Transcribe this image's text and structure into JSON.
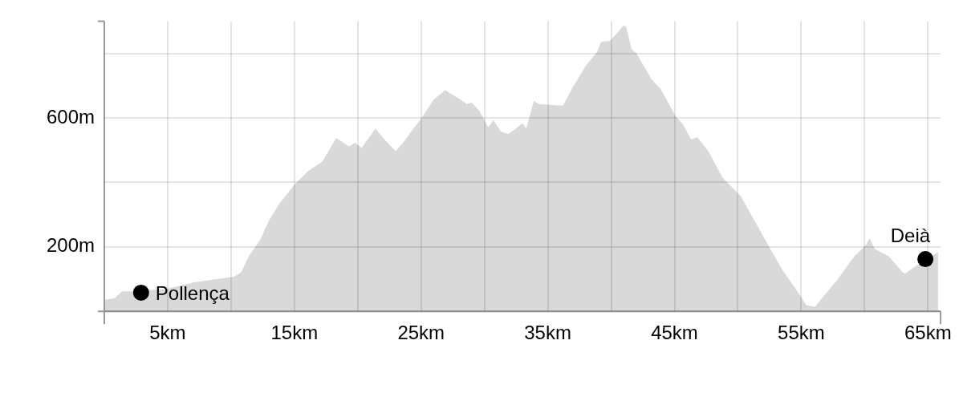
{
  "chart_data": {
    "type": "area",
    "color": "#d9d9d9",
    "x": [
      0,
      0.8,
      1.4,
      2.2,
      4.8,
      7.1,
      8.9,
      10.2,
      10.8,
      11.4,
      12.3,
      13.0,
      13.8,
      15.0,
      16.1,
      17.2,
      18.3,
      19.3,
      19.8,
      20.3,
      21.4,
      22.2,
      23.0,
      23.7,
      24.3,
      25.0,
      26.0,
      26.9,
      28.0,
      28.6,
      29.0,
      29.6,
      30.3,
      30.7,
      31.3,
      31.9,
      32.6,
      33.0,
      33.3,
      33.9,
      34.3,
      36.2,
      36.9,
      38.0,
      38.9,
      39.2,
      39.9,
      40.5,
      41.0,
      41.2,
      41.6,
      42.0,
      43.2,
      43.9,
      45.1,
      45.7,
      46.3,
      46.8,
      47.7,
      48.8,
      50.2,
      51.3,
      52.4,
      53.5,
      54.7,
      55.4,
      56.1,
      56.7,
      57.8,
      59.2,
      60.1,
      60.4,
      60.8,
      61.9,
      63.0,
      63.2,
      64.1,
      65.8
    ],
    "values": [
      36,
      40,
      62,
      62,
      69,
      90,
      100,
      107,
      121,
      171,
      222,
      282,
      333,
      393,
      436,
      464,
      538,
      512,
      523,
      507,
      567,
      529,
      497,
      529,
      562,
      597,
      657,
      686,
      660,
      643,
      648,
      622,
      571,
      593,
      558,
      550,
      571,
      583,
      567,
      652,
      643,
      638,
      690,
      762,
      805,
      836,
      839,
      864,
      888,
      881,
      814,
      800,
      719,
      690,
      605,
      579,
      533,
      540,
      495,
      414,
      359,
      282,
      205,
      129,
      62,
      19,
      14,
      44,
      95,
      171,
      205,
      226,
      193,
      171,
      121,
      117,
      142,
      184
    ],
    "xlim": [
      0,
      66
    ],
    "ylim": [
      0,
      900
    ],
    "xticks": [
      {
        "value": 5,
        "label": "5km"
      },
      {
        "value": 10,
        "label": null
      },
      {
        "value": 15,
        "label": "15km"
      },
      {
        "value": 20,
        "label": null
      },
      {
        "value": 25,
        "label": "25km"
      },
      {
        "value": 30,
        "label": null
      },
      {
        "value": 35,
        "label": "35km"
      },
      {
        "value": 40,
        "label": null
      },
      {
        "value": 45,
        "label": "45km"
      },
      {
        "value": 50,
        "label": null
      },
      {
        "value": 55,
        "label": "55km"
      },
      {
        "value": 60,
        "label": null
      },
      {
        "value": 65,
        "label": "65km"
      }
    ],
    "yticks": [
      {
        "value": 0,
        "label": null
      },
      {
        "value": 200,
        "label": "200m"
      },
      {
        "value": 400,
        "label": null
      },
      {
        "value": 600,
        "label": "600m"
      },
      {
        "value": 800,
        "label": null
      }
    ],
    "grid": true,
    "annotations": [
      {
        "text": "Pollença",
        "x": 2.9,
        "y": 58
      },
      {
        "text": "Deià",
        "x": 64.8,
        "y": 162
      }
    ]
  }
}
